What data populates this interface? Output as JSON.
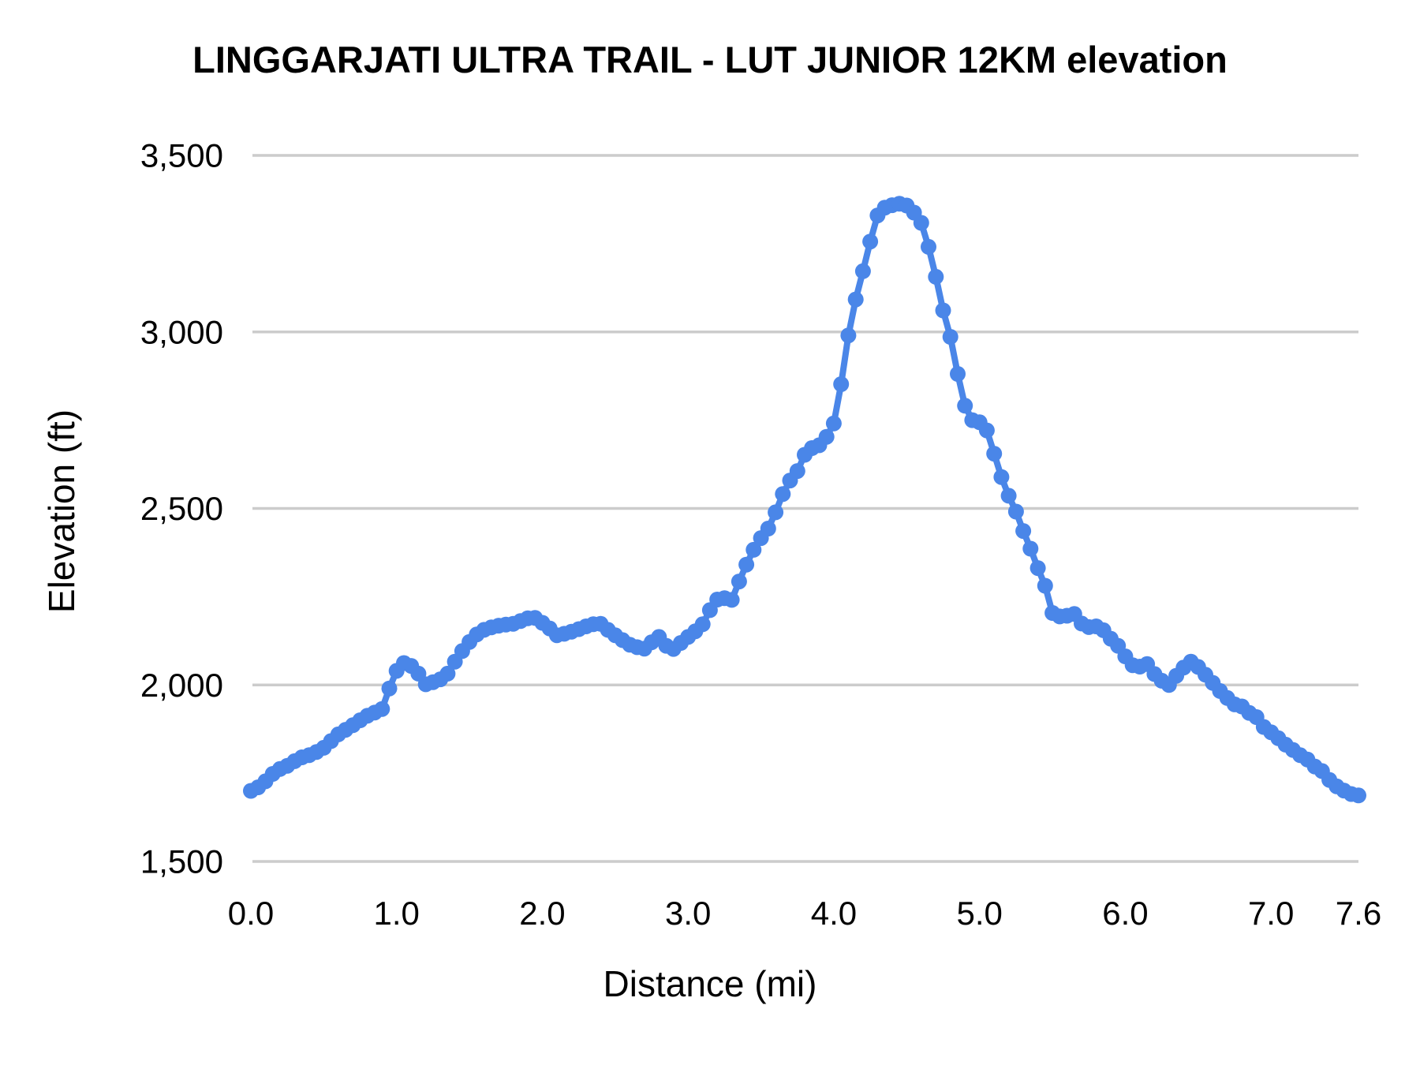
{
  "title": "LINGGARJATI ULTRA TRAIL - LUT JUNIOR 12KM elevation",
  "chart_data": {
    "type": "line",
    "title": "LINGGARJATI ULTRA TRAIL - LUT JUNIOR 12KM elevation",
    "xlabel": "Distance (mi)",
    "ylabel": "Elevation (ft)",
    "xlim": [
      0.0,
      7.6
    ],
    "ylim": [
      1500,
      3500
    ],
    "grid": "horizontal-only",
    "legend": "none",
    "marker_style": "overlapping-dots",
    "series_color": "#4a86e8",
    "gridline_color": "#cccccc",
    "text_color": "#000000",
    "background_color": "#ffffff",
    "x_ticks": [
      {
        "label": "0.0",
        "value": 0.0
      },
      {
        "label": "1.0",
        "value": 1.0
      },
      {
        "label": "2.0",
        "value": 2.0
      },
      {
        "label": "3.0",
        "value": 3.0
      },
      {
        "label": "4.0",
        "value": 4.0
      },
      {
        "label": "5.0",
        "value": 5.0
      },
      {
        "label": "6.0",
        "value": 6.0
      },
      {
        "label": "7.0",
        "value": 7.0
      },
      {
        "label": "7.6",
        "value": 7.6
      }
    ],
    "y_ticks": [
      {
        "label": "1,500",
        "value": 1500
      },
      {
        "label": "2,000",
        "value": 2000
      },
      {
        "label": "2,500",
        "value": 2500
      },
      {
        "label": "3,000",
        "value": 3000
      },
      {
        "label": "3,500",
        "value": 3500
      }
    ],
    "points": [
      [
        0.0,
        1700
      ],
      [
        0.05,
        1710
      ],
      [
        0.1,
        1727
      ],
      [
        0.15,
        1748
      ],
      [
        0.2,
        1762
      ],
      [
        0.25,
        1771
      ],
      [
        0.3,
        1784
      ],
      [
        0.35,
        1795
      ],
      [
        0.4,
        1801
      ],
      [
        0.45,
        1810
      ],
      [
        0.5,
        1822
      ],
      [
        0.55,
        1841
      ],
      [
        0.6,
        1860
      ],
      [
        0.65,
        1873
      ],
      [
        0.7,
        1886
      ],
      [
        0.75,
        1900
      ],
      [
        0.8,
        1913
      ],
      [
        0.85,
        1922
      ],
      [
        0.9,
        1932
      ],
      [
        0.95,
        1990
      ],
      [
        1.0,
        2040
      ],
      [
        1.05,
        2062
      ],
      [
        1.1,
        2054
      ],
      [
        1.15,
        2032
      ],
      [
        1.2,
        2002
      ],
      [
        1.25,
        2008
      ],
      [
        1.3,
        2016
      ],
      [
        1.35,
        2032
      ],
      [
        1.4,
        2066
      ],
      [
        1.45,
        2096
      ],
      [
        1.5,
        2122
      ],
      [
        1.55,
        2143
      ],
      [
        1.6,
        2156
      ],
      [
        1.65,
        2163
      ],
      [
        1.7,
        2168
      ],
      [
        1.75,
        2171
      ],
      [
        1.8,
        2173
      ],
      [
        1.85,
        2181
      ],
      [
        1.9,
        2189
      ],
      [
        1.95,
        2190
      ],
      [
        2.0,
        2176
      ],
      [
        2.05,
        2160
      ],
      [
        2.1,
        2141
      ],
      [
        2.15,
        2145
      ],
      [
        2.2,
        2151
      ],
      [
        2.25,
        2158
      ],
      [
        2.3,
        2166
      ],
      [
        2.35,
        2172
      ],
      [
        2.4,
        2173
      ],
      [
        2.45,
        2156
      ],
      [
        2.5,
        2141
      ],
      [
        2.55,
        2127
      ],
      [
        2.6,
        2114
      ],
      [
        2.65,
        2107
      ],
      [
        2.7,
        2103
      ],
      [
        2.75,
        2121
      ],
      [
        2.8,
        2136
      ],
      [
        2.85,
        2111
      ],
      [
        2.9,
        2102
      ],
      [
        2.95,
        2119
      ],
      [
        3.0,
        2136
      ],
      [
        3.05,
        2152
      ],
      [
        3.1,
        2172
      ],
      [
        3.15,
        2212
      ],
      [
        3.2,
        2242
      ],
      [
        3.25,
        2246
      ],
      [
        3.3,
        2241
      ],
      [
        3.35,
        2293
      ],
      [
        3.4,
        2341
      ],
      [
        3.45,
        2383
      ],
      [
        3.5,
        2416
      ],
      [
        3.55,
        2443
      ],
      [
        3.6,
        2489
      ],
      [
        3.65,
        2541
      ],
      [
        3.7,
        2579
      ],
      [
        3.75,
        2606
      ],
      [
        3.8,
        2652
      ],
      [
        3.85,
        2671
      ],
      [
        3.9,
        2679
      ],
      [
        3.95,
        2703
      ],
      [
        4.0,
        2741
      ],
      [
        4.05,
        2852
      ],
      [
        4.1,
        2990
      ],
      [
        4.15,
        3092
      ],
      [
        4.2,
        3172
      ],
      [
        4.25,
        3256
      ],
      [
        4.3,
        3330
      ],
      [
        4.35,
        3352
      ],
      [
        4.4,
        3359
      ],
      [
        4.45,
        3363
      ],
      [
        4.5,
        3358
      ],
      [
        4.55,
        3338
      ],
      [
        4.6,
        3309
      ],
      [
        4.65,
        3241
      ],
      [
        4.7,
        3156
      ],
      [
        4.75,
        3061
      ],
      [
        4.8,
        2986
      ],
      [
        4.85,
        2881
      ],
      [
        4.9,
        2791
      ],
      [
        4.95,
        2750
      ],
      [
        5.0,
        2744
      ],
      [
        5.05,
        2721
      ],
      [
        5.1,
        2655
      ],
      [
        5.15,
        2589
      ],
      [
        5.2,
        2536
      ],
      [
        5.25,
        2491
      ],
      [
        5.3,
        2436
      ],
      [
        5.35,
        2386
      ],
      [
        5.4,
        2331
      ],
      [
        5.45,
        2281
      ],
      [
        5.5,
        2204
      ],
      [
        5.55,
        2194
      ],
      [
        5.6,
        2196
      ],
      [
        5.65,
        2201
      ],
      [
        5.7,
        2174
      ],
      [
        5.75,
        2164
      ],
      [
        5.8,
        2166
      ],
      [
        5.85,
        2155
      ],
      [
        5.9,
        2131
      ],
      [
        5.95,
        2111
      ],
      [
        6.0,
        2081
      ],
      [
        6.05,
        2056
      ],
      [
        6.1,
        2052
      ],
      [
        6.15,
        2059
      ],
      [
        6.2,
        2031
      ],
      [
        6.25,
        2012
      ],
      [
        6.3,
        2000
      ],
      [
        6.35,
        2026
      ],
      [
        6.4,
        2049
      ],
      [
        6.45,
        2066
      ],
      [
        6.5,
        2051
      ],
      [
        6.55,
        2029
      ],
      [
        6.6,
        2006
      ],
      [
        6.65,
        1983
      ],
      [
        6.7,
        1963
      ],
      [
        6.75,
        1945
      ],
      [
        6.8,
        1939
      ],
      [
        6.85,
        1921
      ],
      [
        6.9,
        1909
      ],
      [
        6.95,
        1881
      ],
      [
        7.0,
        1866
      ],
      [
        7.05,
        1849
      ],
      [
        7.1,
        1831
      ],
      [
        7.15,
        1816
      ],
      [
        7.2,
        1801
      ],
      [
        7.25,
        1789
      ],
      [
        7.3,
        1769
      ],
      [
        7.35,
        1756
      ],
      [
        7.4,
        1731
      ],
      [
        7.45,
        1713
      ],
      [
        7.5,
        1701
      ],
      [
        7.55,
        1691
      ],
      [
        7.6,
        1687
      ]
    ]
  }
}
